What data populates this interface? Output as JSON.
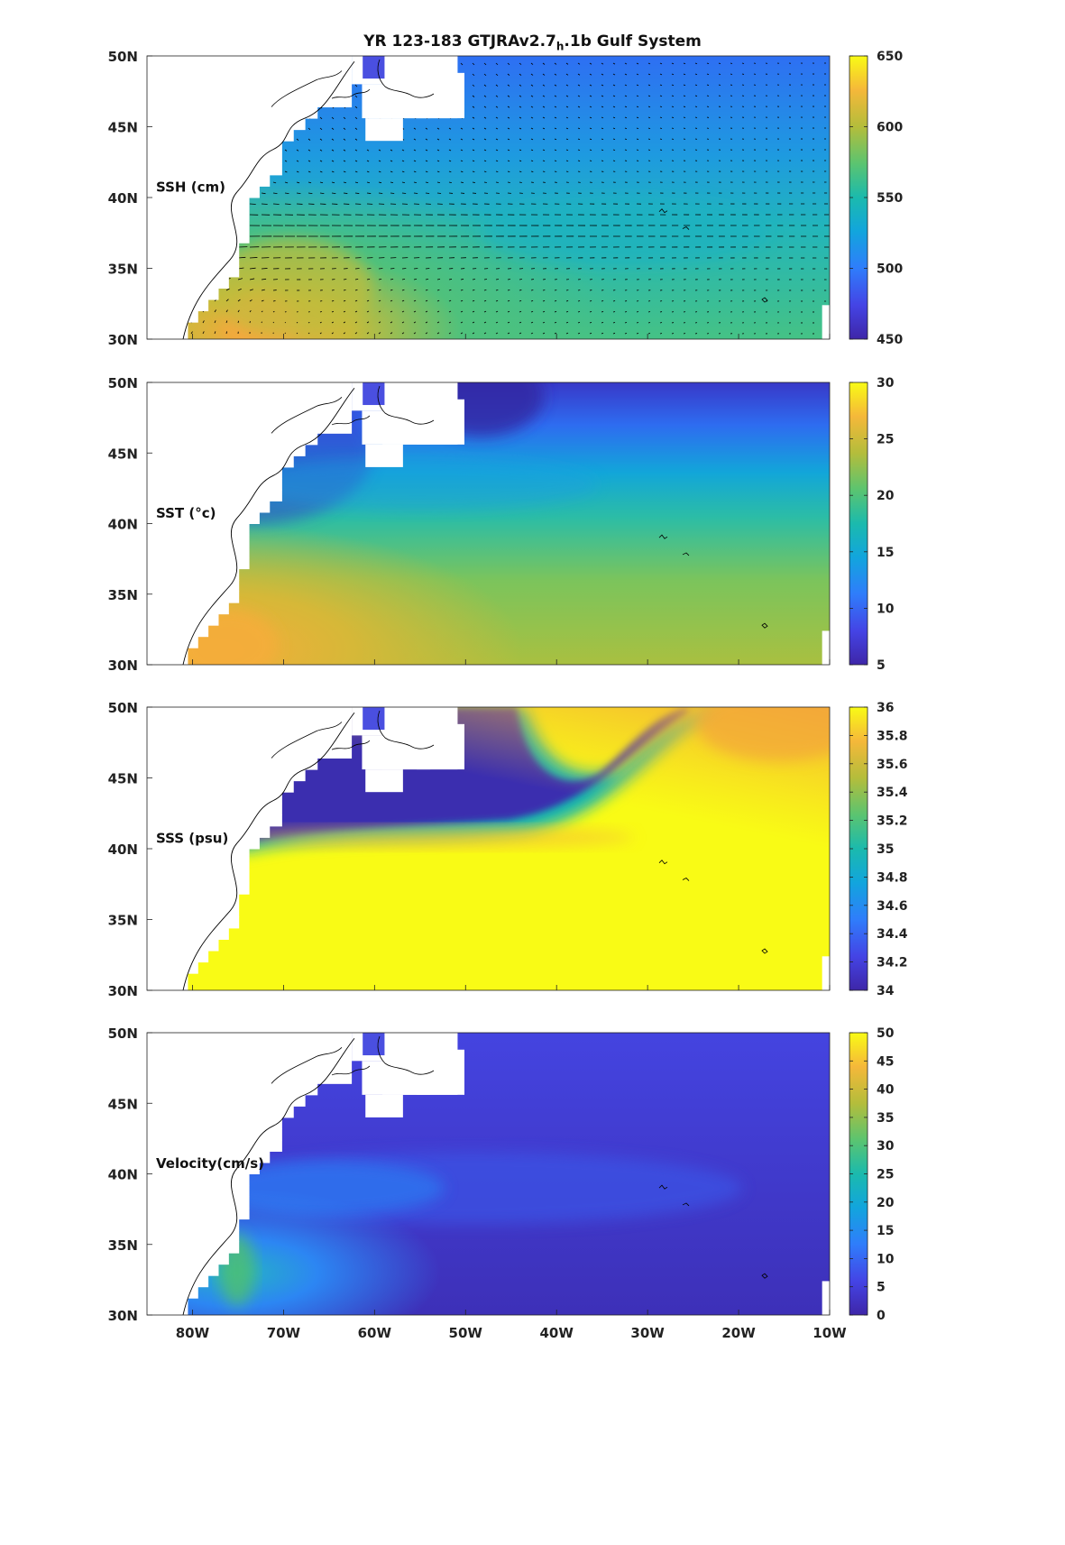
{
  "figure": {
    "title_main": "YR 123-183 GTJRAv2.7",
    "title_sub": "h",
    "title_rest": ".1b Gulf System"
  },
  "chart_data": [
    {
      "type": "heatmap",
      "panel_label": "SSH (cm)",
      "xticks": [
        "80W",
        "70W",
        "60W",
        "50W",
        "40W",
        "30W",
        "20W",
        "10W"
      ],
      "yticks": [
        "30N",
        "35N",
        "40N",
        "45N",
        "50N"
      ],
      "xlim": [
        -85,
        -10
      ],
      "ylim": [
        30,
        50
      ],
      "colorbar": {
        "ticks": [
          "450",
          "500",
          "550",
          "600",
          "650"
        ],
        "range": [
          450,
          650
        ]
      },
      "vectors": true
    },
    {
      "type": "heatmap",
      "panel_label": "SST (°c)",
      "xticks": [
        "80W",
        "70W",
        "60W",
        "50W",
        "40W",
        "30W",
        "20W",
        "10W"
      ],
      "yticks": [
        "30N",
        "35N",
        "40N",
        "45N",
        "50N"
      ],
      "xlim": [
        -85,
        -10
      ],
      "ylim": [
        30,
        50
      ],
      "colorbar": {
        "ticks": [
          "5",
          "10",
          "15",
          "20",
          "25",
          "30"
        ],
        "range": [
          5,
          30
        ]
      }
    },
    {
      "type": "heatmap",
      "panel_label": "SSS (psu)",
      "xticks": [
        "80W",
        "70W",
        "60W",
        "50W",
        "40W",
        "30W",
        "20W",
        "10W"
      ],
      "yticks": [
        "30N",
        "35N",
        "40N",
        "45N",
        "50N"
      ],
      "xlim": [
        -85,
        -10
      ],
      "ylim": [
        30,
        50
      ],
      "colorbar": {
        "ticks": [
          "34",
          "34.2",
          "34.4",
          "34.6",
          "34.8",
          "35",
          "35.2",
          "35.4",
          "35.6",
          "35.8",
          "36"
        ],
        "range": [
          34,
          36
        ]
      }
    },
    {
      "type": "heatmap",
      "panel_label": "Velocity(cm/s)",
      "xticks": [
        "80W",
        "70W",
        "60W",
        "50W",
        "40W",
        "30W",
        "20W",
        "10W"
      ],
      "yticks": [
        "30N",
        "35N",
        "40N",
        "45N",
        "50N"
      ],
      "xlim": [
        -85,
        -10
      ],
      "ylim": [
        30,
        50
      ],
      "colorbar": {
        "ticks": [
          "0",
          "5",
          "10",
          "15",
          "20",
          "25",
          "30",
          "35",
          "40",
          "45",
          "50"
        ],
        "range": [
          0,
          50
        ]
      }
    }
  ]
}
